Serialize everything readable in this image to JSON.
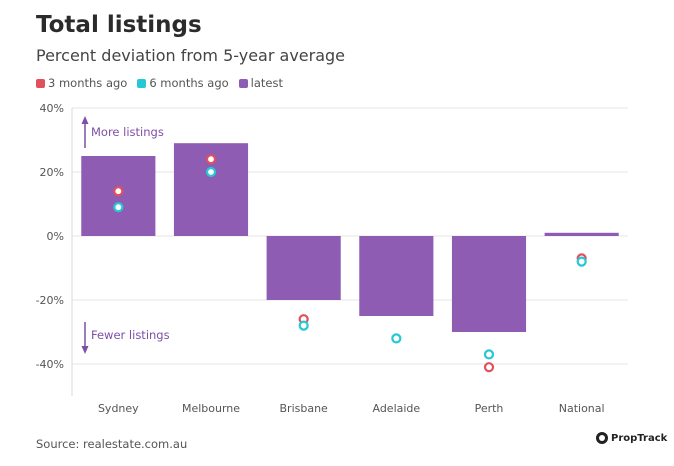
{
  "chart_data": {
    "type": "bar",
    "title": "Total listings",
    "subtitle": "Percent deviation from 5-year average",
    "categories": [
      "Sydney",
      "Melbourne",
      "Brisbane",
      "Adelaide",
      "Perth",
      "National"
    ],
    "series": [
      {
        "name": "latest",
        "kind": "bar",
        "color": "#8f5cb3",
        "values": [
          25,
          29,
          -20,
          -25,
          -30,
          1
        ]
      },
      {
        "name": "3 months ago",
        "kind": "marker",
        "color": "#e0505d",
        "values": [
          14,
          24,
          -26,
          null,
          -41,
          -7
        ]
      },
      {
        "name": "6 months ago",
        "kind": "marker",
        "color": "#25c8d4",
        "values": [
          9,
          20,
          -28,
          -32,
          -37,
          -8
        ]
      }
    ],
    "legend_order": [
      "3 months ago",
      "6 months ago",
      "latest"
    ],
    "ylim": [
      -50,
      40
    ],
    "yticks": [
      40,
      20,
      0,
      -20,
      -40
    ],
    "ytick_labels": [
      "40%",
      "20%",
      "0%",
      "-20%",
      "-40%"
    ],
    "annotations": [
      {
        "text": "More listings",
        "direction": "up"
      },
      {
        "text": "Fewer listings",
        "direction": "down"
      }
    ],
    "source": "Source: realestate.com.au",
    "brand": "PropTrack"
  }
}
